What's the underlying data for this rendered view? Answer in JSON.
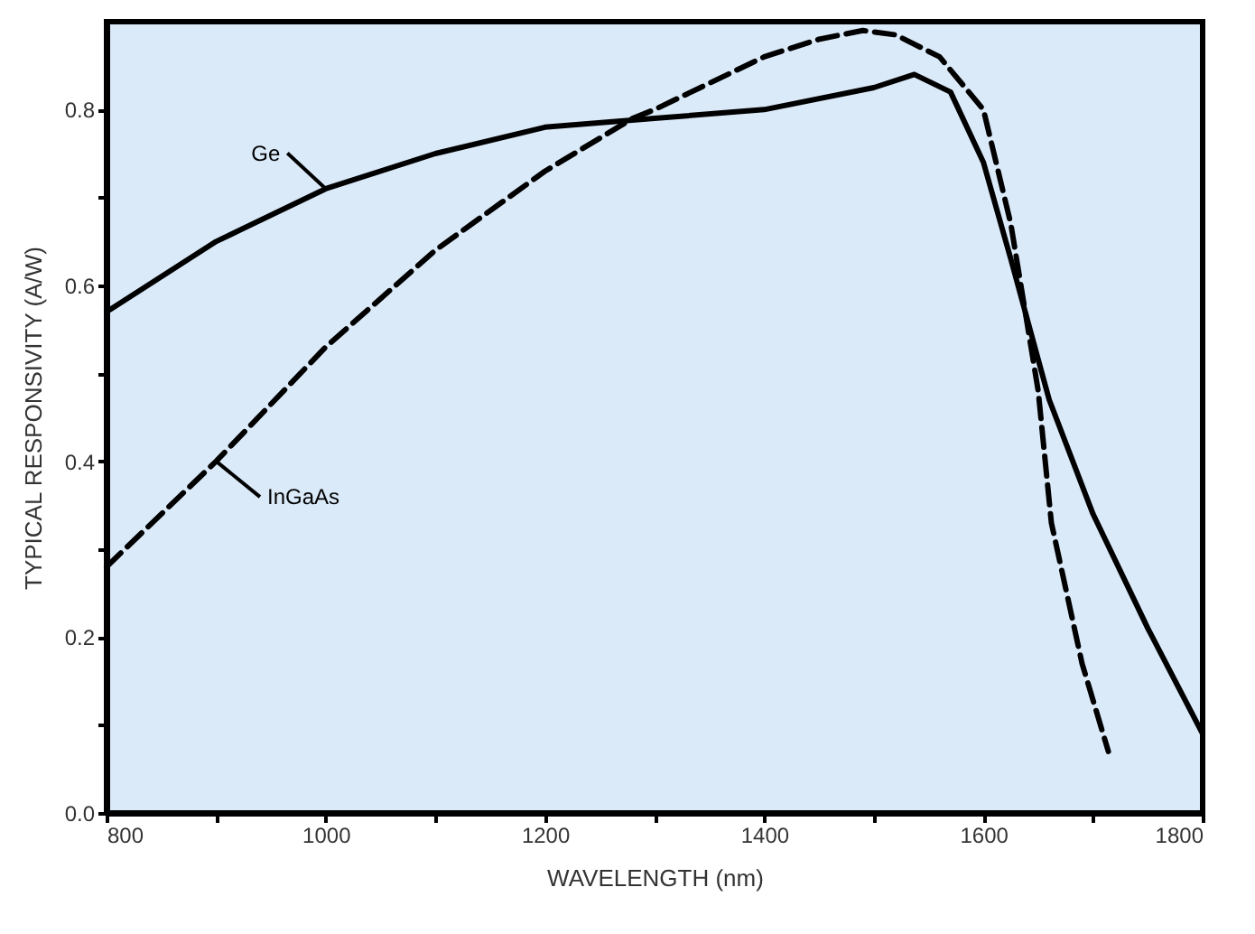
{
  "chart_data": {
    "type": "line",
    "xlabel": "WAVELENGTH (nm)",
    "ylabel": "TYPICAL RESPONSIVITY (A/W)",
    "xlim": [
      800,
      1800
    ],
    "ylim": [
      0,
      0.9
    ],
    "xticks": [
      800,
      {
        "value": 900,
        "label": null
      },
      1000,
      {
        "value": 1100,
        "label": null
      },
      1200,
      {
        "value": 1300,
        "label": null
      },
      1400,
      {
        "value": 1500,
        "label": null
      },
      1600,
      {
        "value": 1700,
        "label": null
      },
      1800
    ],
    "yticks": [
      {
        "value": 0,
        "label": "0.0"
      },
      {
        "value": 0.1,
        "label": null
      },
      0.2,
      {
        "value": 0.3,
        "label": null
      },
      0.4,
      {
        "value": 0.5,
        "label": null
      },
      0.6,
      {
        "value": 0.7,
        "label": null
      },
      0.8
    ],
    "grid": false,
    "marker": "none",
    "series": [
      {
        "name": "Ge",
        "color": "#000000",
        "line_style": "solid",
        "x": [
          800,
          900,
          1000,
          1100,
          1200,
          1300,
          1400,
          1500,
          1537,
          1570,
          1600,
          1625,
          1660,
          1700,
          1750,
          1800
        ],
        "values": [
          0.57,
          0.65,
          0.71,
          0.75,
          0.78,
          0.79,
          0.8,
          0.825,
          0.84,
          0.82,
          0.74,
          0.63,
          0.47,
          0.34,
          0.21,
          0.09
        ]
      },
      {
        "name": "InGaAs",
        "color": "#000000",
        "line_style": "dashed",
        "x": [
          800,
          900,
          1000,
          1100,
          1200,
          1280,
          1300,
          1400,
          1450,
          1490,
          1520,
          1560,
          1600,
          1625,
          1650,
          1662,
          1690,
          1714
        ],
        "values": [
          0.28,
          0.4,
          0.53,
          0.64,
          0.73,
          0.79,
          0.8,
          0.86,
          0.88,
          0.89,
          0.885,
          0.86,
          0.8,
          0.67,
          0.48,
          0.33,
          0.17,
          0.07
        ]
      }
    ]
  }
}
